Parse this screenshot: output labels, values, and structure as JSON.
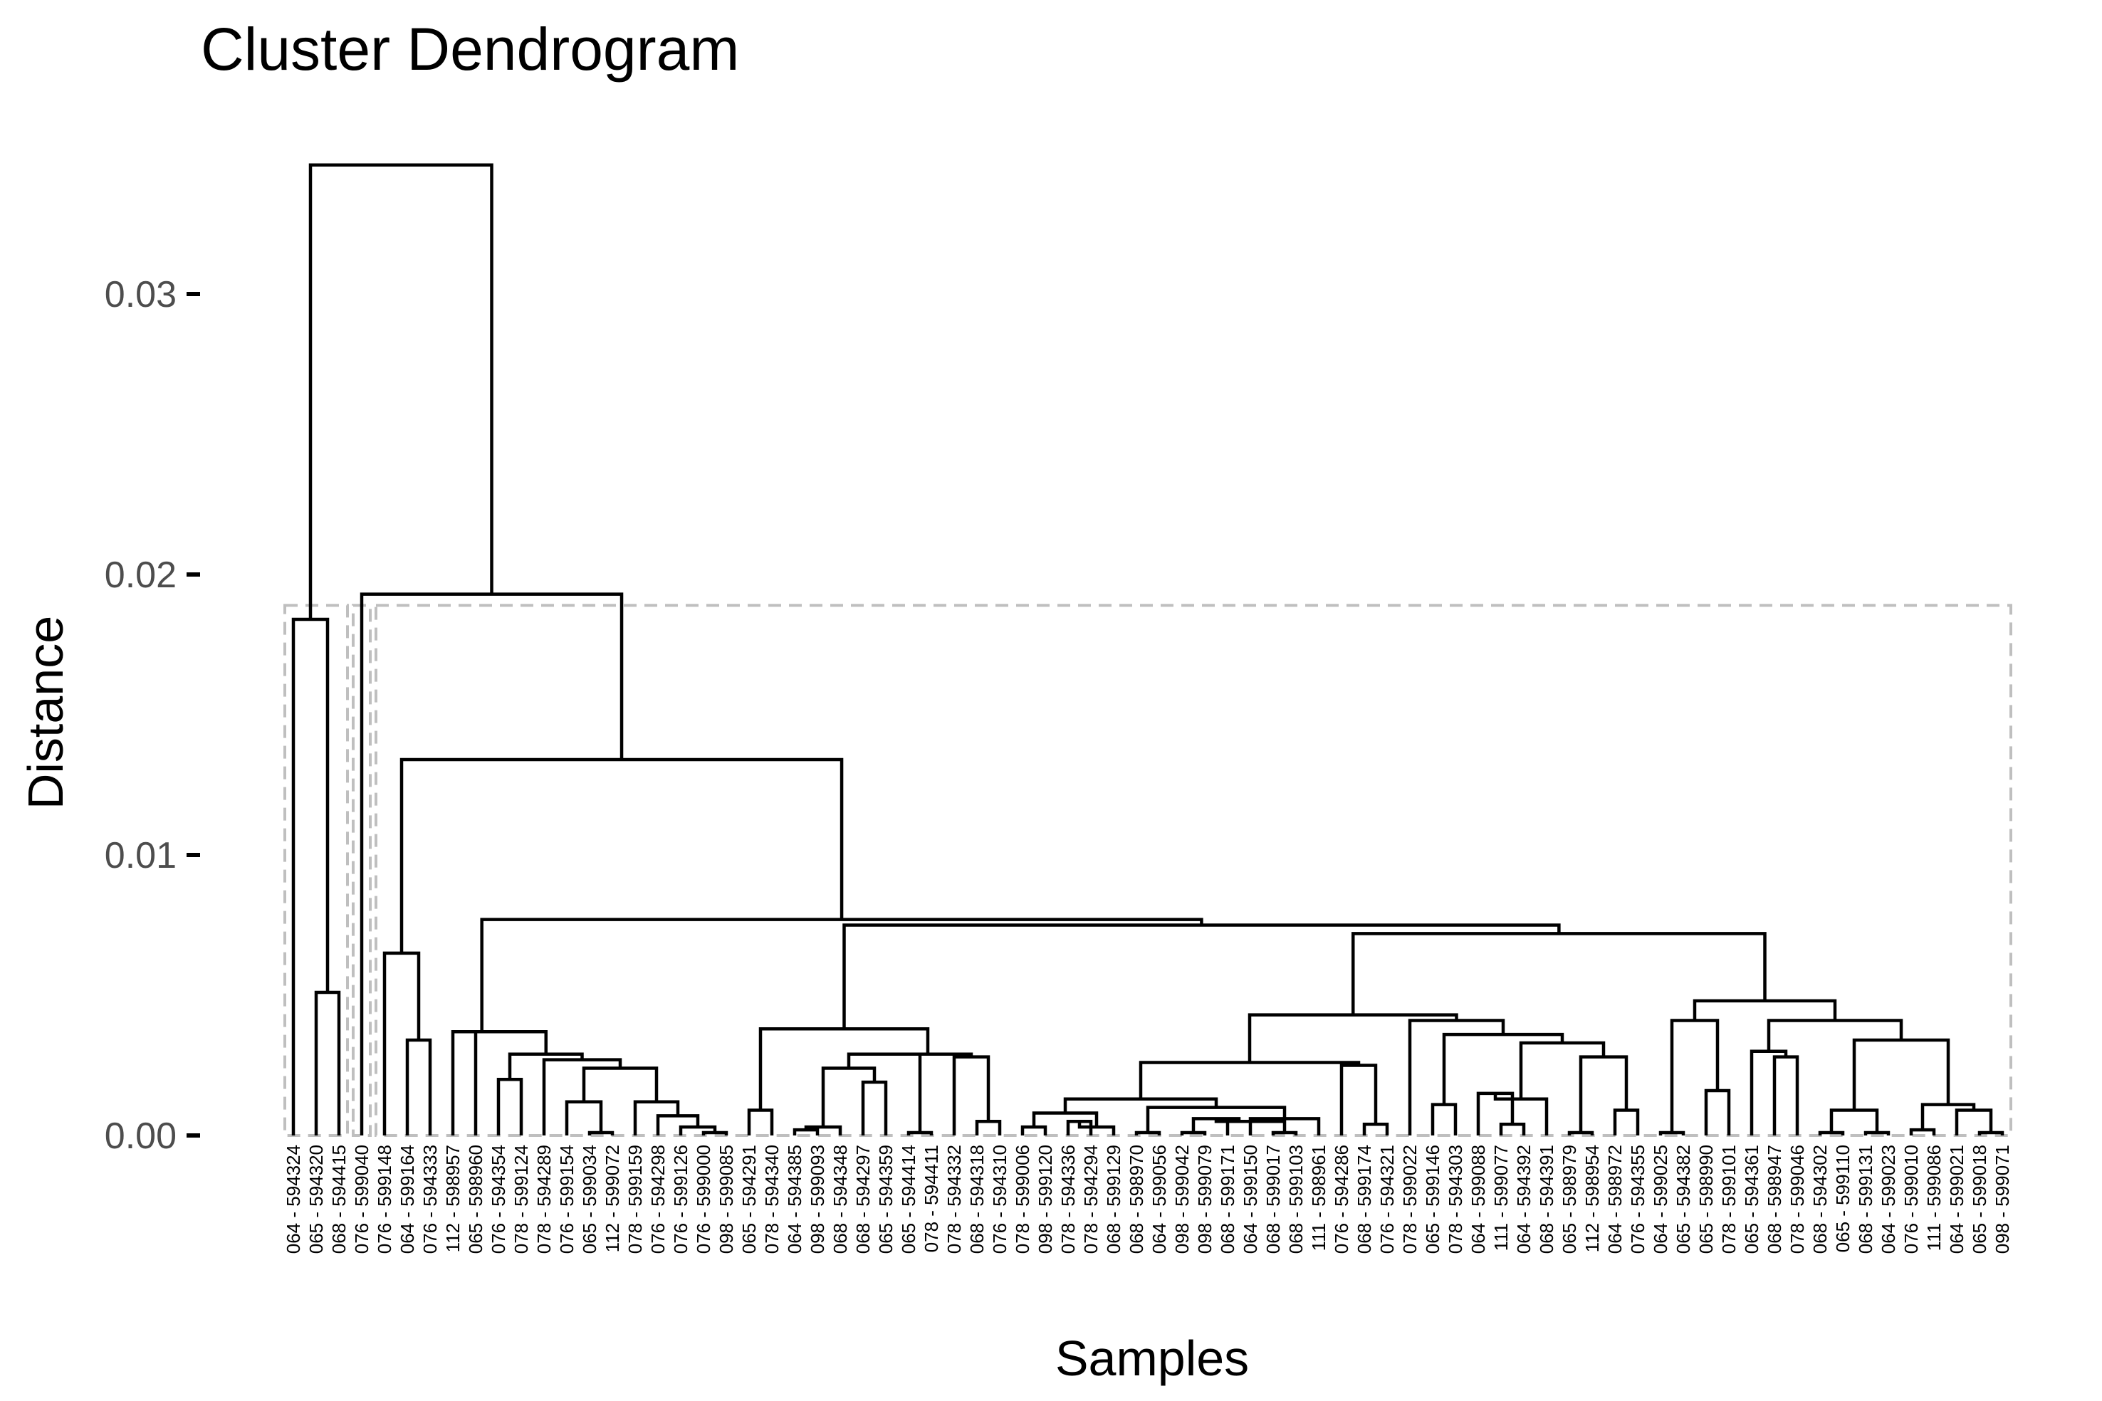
{
  "chart_data": {
    "type": "dendrogram",
    "title": "Cluster Dendrogram",
    "xlabel": "Samples",
    "ylabel": "Distance",
    "ylim": [
      0,
      0.0355
    ],
    "y_ticks": [
      {
        "value": 0.0,
        "label": "0.00"
      },
      {
        "value": 0.01,
        "label": "0.01"
      },
      {
        "value": 0.02,
        "label": "0.02"
      },
      {
        "value": 0.03,
        "label": "0.03"
      }
    ],
    "grid": false,
    "leaves": [
      "064 - 594324",
      "065 - 594320",
      "068 - 594415",
      "076 - 599040",
      "076 - 599148",
      "064 - 599164",
      "076 - 594333",
      "112 - 598957",
      "065 - 598960",
      "076 - 594354",
      "078 - 599124",
      "078 - 594289",
      "076 - 599154",
      "065 - 599034",
      "112 - 599072",
      "078 - 599159",
      "076 - 594298",
      "076 - 599126",
      "076 - 599000",
      "098 - 599085",
      "065 - 594291",
      "078 - 594340",
      "064 - 594385",
      "098 - 599093",
      "068 - 594348",
      "068 - 594297",
      "065 - 594359",
      "065 - 594414",
      "078 - 594411",
      "078 - 594332",
      "068 - 594318",
      "076 - 594310",
      "078 - 599006",
      "098 - 599120",
      "078 - 594336",
      "078 - 594294",
      "068 - 599129",
      "068 - 598970",
      "064 - 599056",
      "098 - 599042",
      "098 - 599079",
      "068 - 599171",
      "064 - 599150",
      "068 - 599017",
      "068 - 599103",
      "111 - 598961",
      "076 - 594286",
      "068 - 599174",
      "076 - 594321",
      "078 - 599022",
      "065 - 599146",
      "078 - 594303",
      "064 - 599088",
      "111 - 599077",
      "064 - 594392",
      "068 - 594391",
      "065 - 598979",
      "112 - 598954",
      "064 - 598972",
      "076 - 594355",
      "064 - 599025",
      "065 - 594382",
      "065 - 598990",
      "078 - 599101",
      "065 - 594361",
      "068 - 598947",
      "078 - 599046",
      "068 - 594302",
      "065 - 599110",
      "068 - 599131",
      "064 - 599023",
      "076 - 599010",
      "111 - 599086",
      "064 - 599021",
      "065 - 599018",
      "098 - 599071"
    ],
    "merges": [
      [
        0,
        2,
        0.0184
      ],
      [
        1,
        2,
        0.0051
      ],
      [
        4,
        5,
        0.0065
      ],
      [
        5,
        6,
        0.0034
      ],
      [
        8,
        9,
        0.0037
      ],
      [
        9,
        10,
        0.0029
      ],
      [
        10,
        10,
        0.002
      ],
      [
        11,
        11,
        0.0028
      ],
      [
        12,
        12,
        0.0027
      ],
      [
        13,
        13,
        0.0024
      ],
      [
        13,
        14,
        0.0012
      ],
      [
        14,
        15,
        0.0001
      ],
      [
        16,
        17,
        0.0012
      ],
      [
        17,
        18,
        0.0007
      ],
      [
        18,
        19,
        0.0002
      ],
      [
        19,
        19.5,
        0.0001
      ],
      [
        21,
        23,
        0.0038
      ],
      [
        21,
        21,
        0.0009
      ],
      [
        23,
        24,
        0.0002
      ],
      [
        24,
        25,
        0.0001
      ],
      [
        25,
        27,
        0.0024
      ],
      [
        27,
        27,
        0.0019
      ],
      [
        28,
        28,
        0.0001
      ],
      [
        26,
        28.5,
        0.0029
      ],
      [
        29,
        30,
        0.0028
      ],
      [
        30,
        31,
        0.0005
      ],
      [
        32,
        34,
        0.0013
      ],
      [
        33,
        35,
        0.0008
      ],
      [
        35,
        36,
        0.0005
      ],
      [
        36,
        37,
        0.0002
      ],
      [
        38,
        39,
        0.0001
      ],
      [
        39,
        40,
        0.0009
      ],
      [
        40,
        41,
        0.0005
      ],
      [
        41,
        42,
        0.0006
      ],
      [
        42,
        43,
        0.0001
      ],
      [
        43,
        44,
        0.0005
      ],
      [
        44,
        45,
        0.0006
      ],
      [
        46,
        47,
        0.0025
      ],
      [
        47,
        48,
        0.0004
      ],
      [
        49,
        50,
        0.0041
      ],
      [
        50,
        51,
        0.0011
      ],
      [
        51,
        53,
        0.0035
      ],
      [
        52,
        53,
        0.0015
      ],
      [
        53,
        54,
        0.0013
      ],
      [
        54,
        55,
        0.0004
      ],
      [
        56,
        57,
        0.0001
      ],
      [
        57,
        58,
        0.0028
      ],
      [
        58,
        59,
        0.0009
      ],
      [
        60,
        61,
        0.0001
      ],
      [
        61,
        62,
        0.0041
      ],
      [
        62,
        63,
        0.0016
      ],
      [
        64,
        65,
        0.003
      ],
      [
        65,
        66,
        0.0028
      ],
      [
        67,
        68,
        0.0001
      ],
      [
        68,
        69,
        0.0009
      ],
      [
        69,
        70,
        0.0001
      ],
      [
        70,
        71,
        0.0002
      ],
      [
        72,
        73,
        0.0011
      ],
      [
        73,
        74,
        0.0009
      ],
      [
        74,
        75,
        0.0001
      ],
      [
        19.5,
        32,
        0.0047
      ],
      [
        33,
        47,
        0.003
      ],
      [
        50,
        60,
        0.0073
      ]
    ],
    "cluster_boxes_height": 0.0189,
    "cluster_count": 3
  }
}
